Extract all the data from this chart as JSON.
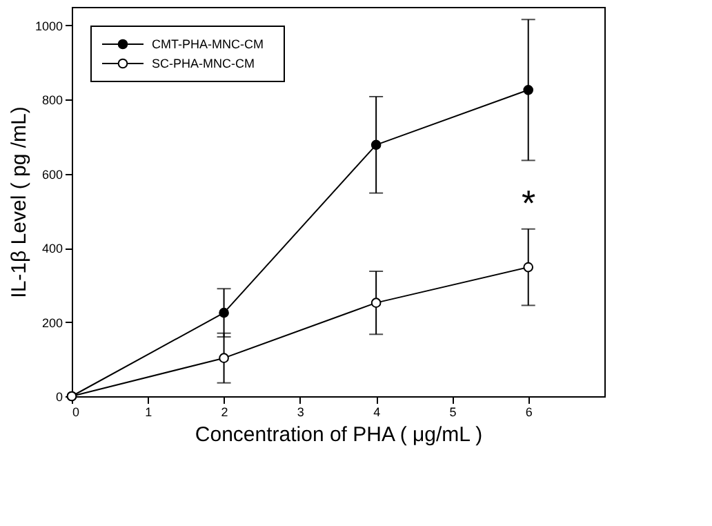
{
  "chart_data": {
    "type": "line",
    "xlabel": "Concentration of PHA ( μg/mL )",
    "ylabel": "IL-1β Level ( pg /mL)",
    "x": [
      0,
      2,
      4,
      6
    ],
    "series": [
      {
        "name": "CMT-PHA-MNC-CM",
        "color": "#000000",
        "values": [
          0,
          225,
          678,
          826
        ],
        "errors": [
          null,
          65,
          130,
          190
        ]
      },
      {
        "name": "SC-PHA-MNC-CM",
        "color": "#000000",
        "values": [
          0,
          103,
          252,
          348
        ],
        "errors": [
          null,
          67,
          85,
          103
        ]
      }
    ],
    "annotations": [
      "*"
    ],
    "xlim": [
      0,
      7
    ],
    "xticks": [
      0,
      1,
      2,
      3,
      4,
      5,
      6
    ],
    "ylim": [
      0,
      1050
    ],
    "yticks": [
      0,
      200,
      400,
      600,
      800,
      1000
    ],
    "grid": false,
    "legend": "top left",
    "marker": "circle",
    "line_style": "solid"
  }
}
